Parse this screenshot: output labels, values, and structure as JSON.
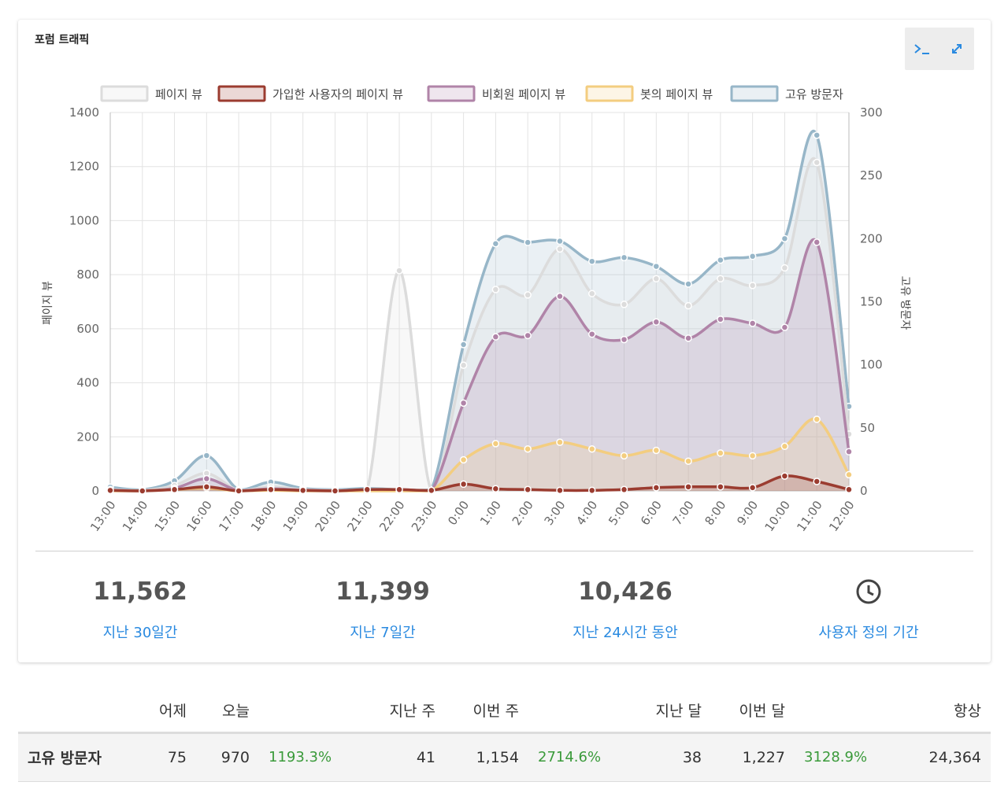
{
  "panel": {
    "title": "포럼 트래픽",
    "controls": [
      {
        "icon": "terminal-icon",
        "label": ">_"
      },
      {
        "icon": "expand-icon",
        "label": "expand"
      }
    ]
  },
  "chart_data": {
    "type": "line",
    "x": [
      "13:00",
      "14:00",
      "15:00",
      "16:00",
      "17:00",
      "18:00",
      "19:00",
      "20:00",
      "21:00",
      "22:00",
      "23:00",
      "0:00",
      "1:00",
      "2:00",
      "3:00",
      "4:00",
      "5:00",
      "6:00",
      "7:00",
      "8:00",
      "9:00",
      "10:00",
      "11:00",
      "12:00"
    ],
    "ylabel": "페이지 뷰",
    "y2label": "고유 방문자",
    "ylim": [
      0,
      1400
    ],
    "y2lim": [
      0,
      300
    ],
    "yticks": [
      "0",
      "200",
      "400",
      "600",
      "800",
      "1000",
      "1200",
      "1400"
    ],
    "y2ticks": [
      "0",
      "50",
      "100",
      "150",
      "200",
      "250",
      "300"
    ],
    "legend_position": "top",
    "grid": true,
    "series": [
      {
        "name": "페이지 뷰",
        "axis": "left",
        "color": "#dcdcdc",
        "values": [
          5,
          2,
          20,
          65,
          2,
          15,
          5,
          2,
          5,
          815,
          2,
          465,
          745,
          725,
          895,
          730,
          690,
          785,
          685,
          785,
          760,
          825,
          1215,
          210
        ]
      },
      {
        "name": "가입한 사용자의 페이지 뷰",
        "axis": "left",
        "color": "#9b3c30",
        "values": [
          2,
          0,
          5,
          15,
          0,
          5,
          2,
          0,
          5,
          5,
          2,
          25,
          8,
          5,
          2,
          2,
          5,
          12,
          15,
          15,
          12,
          55,
          35,
          5
        ]
      },
      {
        "name": "비회원 페이지 뷰",
        "axis": "left",
        "color": "#b084a8",
        "values": [
          3,
          1,
          10,
          45,
          1,
          8,
          3,
          1,
          3,
          5,
          1,
          325,
          570,
          575,
          720,
          580,
          560,
          625,
          565,
          635,
          620,
          605,
          920,
          145
        ]
      },
      {
        "name": "봇의 페이지 뷰",
        "axis": "left",
        "color": "#f3cd80",
        "values": [
          0,
          0,
          5,
          10,
          0,
          2,
          0,
          0,
          0,
          0,
          0,
          115,
          175,
          155,
          180,
          155,
          130,
          150,
          110,
          140,
          130,
          165,
          265,
          60
        ]
      },
      {
        "name": "고유 방문자",
        "axis": "right",
        "color": "#97b6c8",
        "values": [
          3,
          1,
          8,
          28,
          1,
          7,
          2,
          1,
          2,
          1,
          1,
          116,
          196,
          197,
          198,
          182,
          185,
          178,
          164,
          183,
          186,
          200,
          282,
          67
        ]
      }
    ]
  },
  "stats": [
    {
      "value": "11,562",
      "label": "지난 30일간"
    },
    {
      "value": "11,399",
      "label": "지난 7일간"
    },
    {
      "value": "10,426",
      "label": "지난 24시간 동안"
    },
    {
      "icon": "clock-icon",
      "label": "사용자 정의 기간"
    }
  ],
  "summary": {
    "headers": [
      "",
      "어제",
      "오늘",
      "",
      "지난 주",
      "이번 주",
      "",
      "지난 달",
      "이번 달",
      "",
      "항상"
    ],
    "row": {
      "label": "고유 방문자",
      "yesterday": "75",
      "today": "970",
      "day_change": "1193.3%",
      "last_week": "41",
      "this_week": "1,154",
      "week_change": "2714.6%",
      "last_month": "38",
      "this_month": "1,227",
      "month_change": "3128.9%",
      "all_time": "24,364"
    }
  }
}
